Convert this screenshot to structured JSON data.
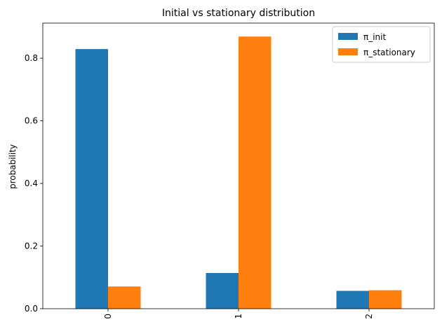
{
  "chart_data": {
    "type": "bar",
    "title": "Initial vs stationary distribution",
    "xlabel": "",
    "ylabel": "probability",
    "categories": [
      "0",
      "1",
      "2"
    ],
    "series": [
      {
        "name": "π_init",
        "values": [
          0.829,
          0.114,
          0.057
        ],
        "color": "#1f77b4"
      },
      {
        "name": "π_stationary",
        "values": [
          0.071,
          0.869,
          0.059
        ],
        "color": "#ff7f0e"
      }
    ],
    "ylim": [
      0,
      0.912
    ],
    "yticks": [
      0.0,
      0.2,
      0.4,
      0.6,
      0.8
    ],
    "ytick_labels": [
      "0.0",
      "0.2",
      "0.4",
      "0.6",
      "0.8"
    ],
    "xtick_rotation": "vertical",
    "grid": false,
    "legend_position": "top-right"
  }
}
